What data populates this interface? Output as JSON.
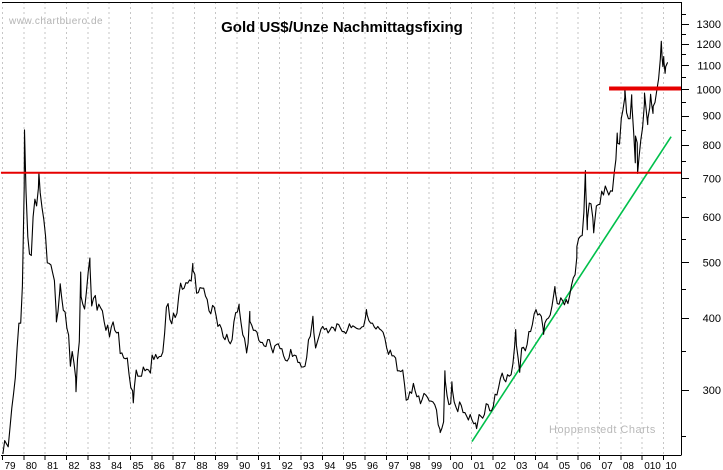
{
  "watermark": "www.chartbuero.de",
  "credit": "Hoppenstedt Charts",
  "title": "Gold US$/Unze Nachmittagsfixing",
  "colors": {
    "background": "#ffffff",
    "price_line": "#000000",
    "grid": "#c6c6c6",
    "resistance_red": "#e60000",
    "trendline_green": "#00c04b",
    "axis": "#000000"
  },
  "chart_data": {
    "type": "line",
    "title": "Gold US$/Unze Nachmittagsfixing",
    "x_axis": {
      "unit": "year",
      "first_year": 1979,
      "last_year": 2010,
      "tick_labels": [
        "79",
        "80",
        "81",
        "82",
        "83",
        "84",
        "85",
        "86",
        "87",
        "88",
        "89",
        "90",
        "91",
        "92",
        "93",
        "94",
        "95",
        "96",
        "97",
        "98",
        "99",
        "00",
        "01",
        "02",
        "03",
        "04",
        "05",
        "06",
        "07",
        "08",
        "010",
        "10"
      ],
      "gridlines": "vertical-dashed"
    },
    "y_axis": {
      "scale": "log",
      "side": "right",
      "major_ticks": [
        1300,
        1200,
        1100,
        1000,
        900,
        800,
        700,
        600,
        500,
        400,
        300
      ],
      "minor_ticks": [
        1350,
        1250,
        1150,
        1050,
        950,
        850,
        750,
        650,
        550,
        450,
        350,
        250
      ],
      "visible_range": [
        231,
        1418
      ]
    },
    "horizontal_lines": [
      {
        "value": 716,
        "style": "thin",
        "from_year": 1978.95,
        "to_year": 2010.85,
        "color": "red"
      },
      {
        "value": 1003,
        "style": "thick",
        "from_year": 2007.47,
        "to_year": 2010.85,
        "color": "red"
      }
    ],
    "trendline": {
      "color": "green",
      "from": {
        "year": 2001.04,
        "value": 244
      },
      "to": {
        "year": 2010.38,
        "value": 827
      }
    },
    "series": [
      {
        "name": "Gold US$/Unze Nachmittagsfixing",
        "monthly_by_year": {
          "1979": [
            227,
            245,
            242,
            239,
            258,
            279,
            295,
            315,
            355,
            392,
            392,
            455
          ],
          "1980": [
            675,
            665,
            554,
            517,
            514,
            600,
            644,
            627,
            673,
            661,
            623,
            594
          ],
          "1981": [
            557,
            499,
            498,
            495,
            480,
            465,
            409,
            411,
            444,
            437,
            413,
            410
          ],
          "1982": [
            384,
            374,
            330,
            350,
            334,
            315,
            339,
            364,
            436,
            423,
            415,
            444
          ],
          "1983": [
            481,
            492,
            420,
            433,
            438,
            413,
            423,
            417,
            412,
            394,
            381,
            389
          ],
          "1984": [
            371,
            386,
            394,
            381,
            377,
            378,
            347,
            348,
            341,
            340,
            341,
            320
          ],
          "1985": [
            303,
            299,
            304,
            325,
            317,
            317,
            317,
            329,
            324,
            326,
            325,
            321
          ],
          "1986": [
            345,
            339,
            346,
            340,
            343,
            343,
            349,
            376,
            418,
            424,
            398,
            391
          ],
          "1987": [
            408,
            401,
            408,
            438,
            460,
            449,
            451,
            461,
            460,
            466,
            464,
            484
          ],
          "1988": [
            477,
            442,
            443,
            452,
            451,
            451,
            437,
            431,
            412,
            407,
            421,
            418
          ],
          "1989": [
            404,
            387,
            390,
            384,
            371,
            367,
            375,
            365,
            361,
            367,
            394,
            409
          ],
          "1990": [
            410,
            416,
            393,
            374,
            369,
            352,
            362,
            395,
            389,
            381,
            381,
            378
          ],
          "1991": [
            366,
            363,
            363,
            358,
            357,
            367,
            367,
            356,
            348,
            358,
            360,
            361
          ],
          "1992": [
            354,
            354,
            344,
            338,
            337,
            341,
            353,
            343,
            345,
            344,
            335,
            335
          ],
          "1993": [
            329,
            329,
            330,
            342,
            367,
            372,
            392,
            378,
            355,
            364,
            373,
            383
          ],
          "1994": [
            387,
            382,
            384,
            377,
            381,
            386,
            385,
            380,
            391,
            390,
            384,
            379
          ],
          "1995": [
            379,
            376,
            382,
            391,
            385,
            388,
            386,
            384,
            383,
            383,
            386,
            387
          ],
          "1996": [
            400,
            405,
            396,
            392,
            392,
            386,
            383,
            387,
            383,
            381,
            378,
            369
          ],
          "1997": [
            355,
            346,
            352,
            344,
            344,
            341,
            324,
            324,
            323,
            325,
            307,
            288
          ],
          "1998": [
            289,
            298,
            296,
            308,
            299,
            292,
            293,
            284,
            289,
            296,
            294,
            291
          ],
          "1999": [
            287,
            287,
            286,
            283,
            277,
            261,
            256,
            257,
            264,
            311,
            293,
            283
          ],
          "2000": [
            284,
            300,
            286,
            280,
            275,
            286,
            282,
            274,
            274,
            270,
            266,
            272
          ],
          "2001": [
            266,
            262,
            263,
            261,
            272,
            270,
            268,
            272,
            284,
            283,
            276,
            276
          ],
          "2002": [
            281,
            295,
            294,
            303,
            314,
            321,
            313,
            310,
            319,
            317,
            319,
            333
          ],
          "2003": [
            357,
            359,
            340,
            328,
            355,
            356,
            351,
            360,
            379,
            379,
            390,
            407
          ],
          "2004": [
            414,
            405,
            407,
            403,
            384,
            392,
            398,
            400,
            405,
            420,
            439,
            442
          ],
          "2005": [
            424,
            423,
            434,
            429,
            422,
            431,
            424,
            438,
            456,
            470,
            476,
            510
          ],
          "2006": [
            550,
            555,
            557,
            611,
            675,
            596,
            634,
            632,
            598,
            586,
            627,
            630
          ],
          "2007": [
            631,
            665,
            655,
            679,
            667,
            655,
            666,
            665,
            713,
            755,
            806,
            803
          ],
          "2008": [
            890,
            922,
            968,
            910,
            889,
            889,
            940,
            839,
            829,
            807,
            761,
            816
          ],
          "2009": [
            858,
            943,
            924,
            890,
            928,
            946,
            934,
            949,
            996,
            1043,
            1127,
            1135
          ],
          "2010": [
            1118,
            1095,
            1113
          ]
        },
        "key_points": [
          [
            1980.055,
            850
          ],
          [
            1980.73,
            716
          ],
          [
            1981.55,
            394
          ],
          [
            1981.73,
            459
          ],
          [
            1982.47,
            298
          ],
          [
            1982.69,
            481
          ],
          [
            1983.12,
            509
          ],
          [
            1985.16,
            285
          ],
          [
            1987.95,
            498
          ],
          [
            1990.12,
            423
          ],
          [
            1990.47,
            348
          ],
          [
            1990.62,
            411
          ],
          [
            1993.58,
            403
          ],
          [
            1996.09,
            414
          ],
          [
            1999.55,
            253
          ],
          [
            1999.77,
            324
          ],
          [
            2000.1,
            310
          ],
          [
            2001.26,
            257
          ],
          [
            2003.09,
            382
          ],
          [
            2003.28,
            322
          ],
          [
            2004.4,
            375
          ],
          [
            2004.93,
            454
          ],
          [
            2005.96,
            533
          ],
          [
            2006.36,
            722
          ],
          [
            2006.45,
            570
          ],
          [
            2006.75,
            563
          ],
          [
            2007.85,
            839
          ],
          [
            2008.21,
            1008
          ],
          [
            2008.53,
            978
          ],
          [
            2008.7,
            745
          ],
          [
            2008.81,
            714
          ],
          [
            2009.13,
            985
          ],
          [
            2009.28,
            868
          ],
          [
            2009.42,
            980
          ],
          [
            2009.53,
            908
          ],
          [
            2009.92,
            1212
          ],
          [
            2009.995,
            1095
          ],
          [
            2010.03,
            1140
          ],
          [
            2010.1,
            1066
          ],
          [
            2010.22,
            1113
          ]
        ]
      }
    ]
  }
}
